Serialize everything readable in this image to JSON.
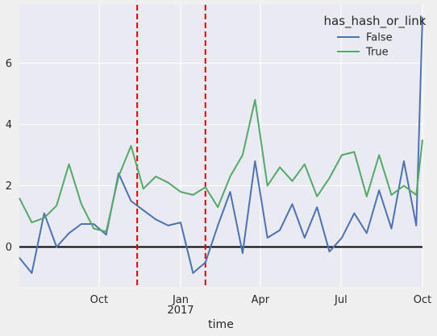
{
  "chart_data": {
    "type": "line",
    "title": "",
    "xlabel": "time",
    "ylabel": "",
    "x_tick_labels": [
      {
        "date": "2016-10-01",
        "label": "Oct",
        "sublabel": ""
      },
      {
        "date": "2017-01-01",
        "label": "Jan",
        "sublabel": "2017"
      },
      {
        "date": "2017-04-01",
        "label": "Apr",
        "sublabel": ""
      },
      {
        "date": "2017-07-01",
        "label": "Jul",
        "sublabel": ""
      },
      {
        "date": "2017-10-01",
        "label": "Oct",
        "sublabel": ""
      }
    ],
    "y_ticks": [
      0,
      2,
      4,
      6
    ],
    "xlim": [
      "2016-07-03",
      "2017-10-01"
    ],
    "ylim": [
      -1.3,
      7.9
    ],
    "grid": true,
    "legend": {
      "title": "has_hash_or_link",
      "placement": "top-right"
    },
    "colors": {
      "background": "#eaeaf2",
      "grid": "#ffffff",
      "figure": "#f0f0f0",
      "zero_line": "#000000",
      "vline": "#e00000"
    },
    "reference_lines": {
      "horizontal_y": 0,
      "vertical_dates": [
        "2016-11-13",
        "2017-01-29"
      ]
    },
    "series": [
      {
        "name": "False",
        "color": "#4c72b0",
        "x": [
          "2016-07-03",
          "2016-07-17",
          "2016-07-31",
          "2016-08-14",
          "2016-08-28",
          "2016-09-11",
          "2016-09-25",
          "2016-10-09",
          "2016-10-23",
          "2016-11-06",
          "2016-11-20",
          "2016-12-04",
          "2016-12-18",
          "2017-01-01",
          "2017-01-15",
          "2017-01-29",
          "2017-02-12",
          "2017-02-26",
          "2017-03-12",
          "2017-03-26",
          "2017-04-09",
          "2017-04-23",
          "2017-05-07",
          "2017-05-21",
          "2017-06-04",
          "2017-06-18",
          "2017-07-02",
          "2017-07-16",
          "2017-07-30",
          "2017-08-13",
          "2017-08-27",
          "2017-09-10",
          "2017-09-24",
          "2017-10-01"
        ],
        "values": [
          -0.35,
          -0.85,
          1.1,
          0.0,
          0.45,
          0.75,
          0.75,
          0.4,
          2.4,
          1.5,
          1.2,
          0.9,
          0.7,
          0.8,
          -0.85,
          -0.5,
          0.7,
          1.8,
          -0.2,
          2.8,
          0.3,
          0.55,
          1.4,
          0.3,
          1.3,
          -0.15,
          0.3,
          1.1,
          0.45,
          1.85,
          0.6,
          2.8,
          0.7,
          7.5
        ]
      },
      {
        "name": "True",
        "color": "#55a868",
        "x": [
          "2016-07-03",
          "2016-07-17",
          "2016-07-31",
          "2016-08-14",
          "2016-08-28",
          "2016-09-11",
          "2016-09-25",
          "2016-10-09",
          "2016-10-23",
          "2016-11-06",
          "2016-11-20",
          "2016-12-04",
          "2016-12-18",
          "2017-01-01",
          "2017-01-15",
          "2017-01-29",
          "2017-02-12",
          "2017-02-26",
          "2017-03-12",
          "2017-03-26",
          "2017-04-09",
          "2017-04-23",
          "2017-05-07",
          "2017-05-21",
          "2017-06-04",
          "2017-06-18",
          "2017-07-02",
          "2017-07-16",
          "2017-07-30",
          "2017-08-13",
          "2017-08-27",
          "2017-09-10",
          "2017-09-24",
          "2017-10-01"
        ],
        "values": [
          1.6,
          0.8,
          0.95,
          1.35,
          2.7,
          1.4,
          0.6,
          0.5,
          2.3,
          3.3,
          1.9,
          2.3,
          2.1,
          1.8,
          1.7,
          1.95,
          1.3,
          2.3,
          3.0,
          4.8,
          2.0,
          2.6,
          2.15,
          2.7,
          1.65,
          2.25,
          3.0,
          3.1,
          1.65,
          3.0,
          1.7,
          2.0,
          1.7,
          3.5
        ]
      }
    ]
  }
}
